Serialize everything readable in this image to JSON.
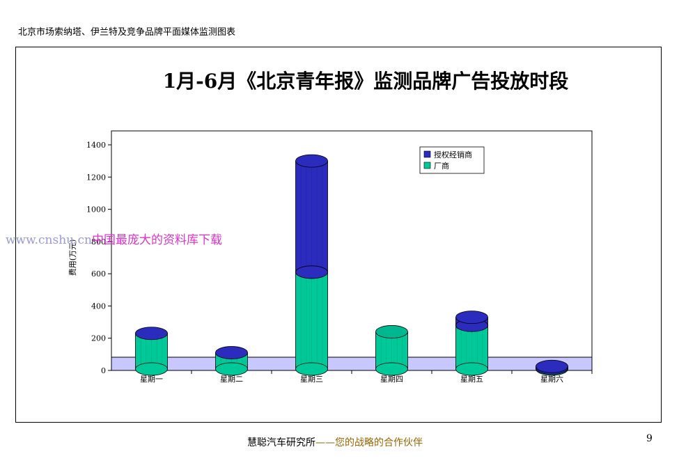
{
  "header": {
    "text": "北京市场索纳塔、伊兰特及竞争品牌平面媒体监测图表"
  },
  "watermark": {
    "url": "www.cnshu.cn",
    "text": "中国最庞大的资料库下载"
  },
  "footer": {
    "org": "慧聪汽车研究所",
    "dash": "——",
    "slogan": "您的战略的合作伙伴"
  },
  "page_number": "9",
  "colors": {
    "dealer": "#2b2bbd",
    "factory": "#00c999",
    "floor": "#c8c8ff"
  },
  "chart_data": {
    "type": "bar",
    "title": "1月-6月《北京青年报》监测品牌广告投放时段",
    "xlabel": "",
    "ylabel": "费用(万元)",
    "ylim": [
      0,
      1400
    ],
    "yticks": [
      0,
      200,
      400,
      600,
      800,
      1000,
      1200,
      1400
    ],
    "categories": [
      "星期一",
      "星期二",
      "星期三",
      "星期四",
      "星期五",
      "星期六"
    ],
    "stacked": true,
    "legend_position": "top-right",
    "series": [
      {
        "name": "厂商",
        "values": [
          230,
          110,
          610,
          240,
          280,
          15
        ]
      },
      {
        "name": "授权经销商",
        "values": [
          0,
          0,
          690,
          0,
          50,
          10
        ]
      }
    ]
  }
}
